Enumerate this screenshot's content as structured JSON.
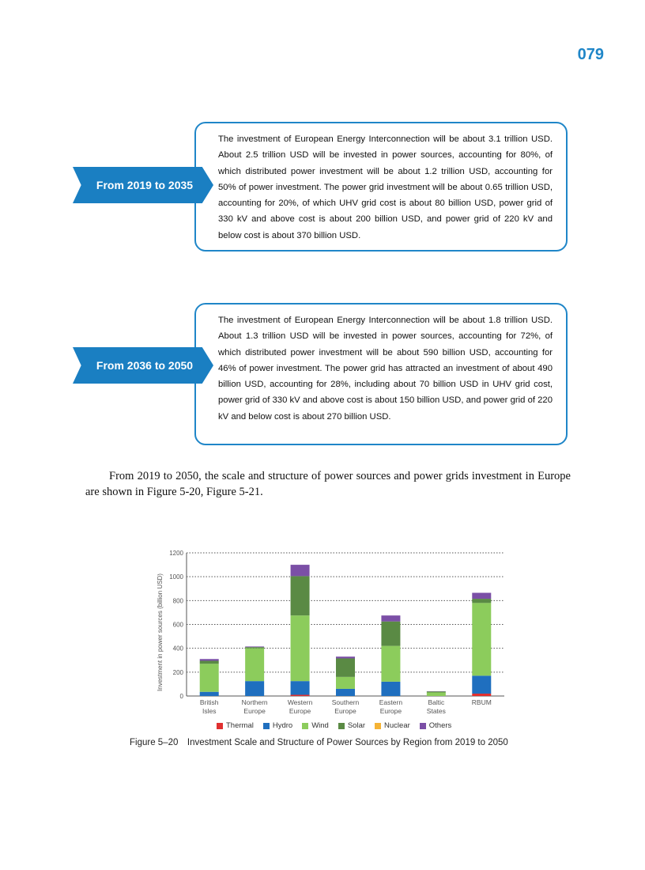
{
  "page_number": "079",
  "callouts": [
    {
      "label": "From 2019 to 2035",
      "text": "The investment of European Energy Interconnection will be about 3.1 trillion USD. About 2.5 trillion USD will be invested in power sources, accounting for 80%, of which distributed power investment will be about 1.2 trillion USD, accounting for 50% of power investment. The power grid investment will be about 0.65 trillion USD, accounting for 20%, of which UHV grid cost is about 80 billion USD, power grid of 330 kV and above cost is about 200 billion USD, and power grid of 220 kV and below cost is about 370 billion USD."
    },
    {
      "label": "From 2036 to 2050",
      "text": "The investment of European Energy Interconnection will be about 1.8 trillion USD. About 1.3 trillion USD will be invested in power sources, accounting for 72%, of which distributed power investment will be about 590 billion USD, accounting for 46% of power investment. The power grid has attracted an investment of about 490 billion USD, accounting for 28%, including about 70 billion USD in UHV grid cost, power grid of 330 kV and above cost is about 150 billion USD, and power grid of 220 kV and below cost is about 270 billion USD."
    }
  ],
  "body_paragraph": "From 2019 to 2050, the scale and structure of power sources and power grids investment in Europe are shown in Figure 5-20, Figure 5-21.",
  "figure_caption": "Figure 5‒20  Investment Scale and Structure of Power Sources by Region from 2019 to 2050",
  "chart_data": {
    "type": "bar",
    "stacked": true,
    "title": "",
    "xlabel": "",
    "ylabel": "Investment in power sources (billion USD)",
    "ylim": [
      0,
      1200
    ],
    "yticks": [
      "0",
      "200",
      "400",
      "600",
      "800",
      "1000",
      "1200"
    ],
    "grid": "dotted horizontal",
    "legend_position": "bottom",
    "categories": [
      [
        "British",
        "Isles"
      ],
      [
        "Northern",
        "Europe"
      ],
      [
        "Western",
        "Europe"
      ],
      [
        "Southern",
        "Europe"
      ],
      [
        "Eastern",
        "Europe"
      ],
      [
        "Baltic",
        "States"
      ],
      [
        "RBUM"
      ]
    ],
    "series": [
      {
        "name": "Thermal",
        "color": "#e03030",
        "values": [
          0,
          0,
          10,
          0,
          0,
          0,
          20
        ]
      },
      {
        "name": "Hydro",
        "color": "#1f6fbf",
        "values": [
          35,
          125,
          115,
          60,
          120,
          0,
          150
        ]
      },
      {
        "name": "Wind",
        "color": "#8ccc5c",
        "values": [
          235,
          275,
          550,
          100,
          300,
          30,
          610
        ]
      },
      {
        "name": "Solar",
        "color": "#5a8a44",
        "values": [
          25,
          10,
          330,
          155,
          205,
          8,
          35
        ]
      },
      {
        "name": "Nuclear",
        "color": "#f5b335",
        "values": [
          0,
          0,
          0,
          0,
          0,
          0,
          0
        ]
      },
      {
        "name": "Others",
        "color": "#7b4fa6",
        "values": [
          15,
          5,
          95,
          15,
          50,
          2,
          50
        ]
      }
    ]
  }
}
